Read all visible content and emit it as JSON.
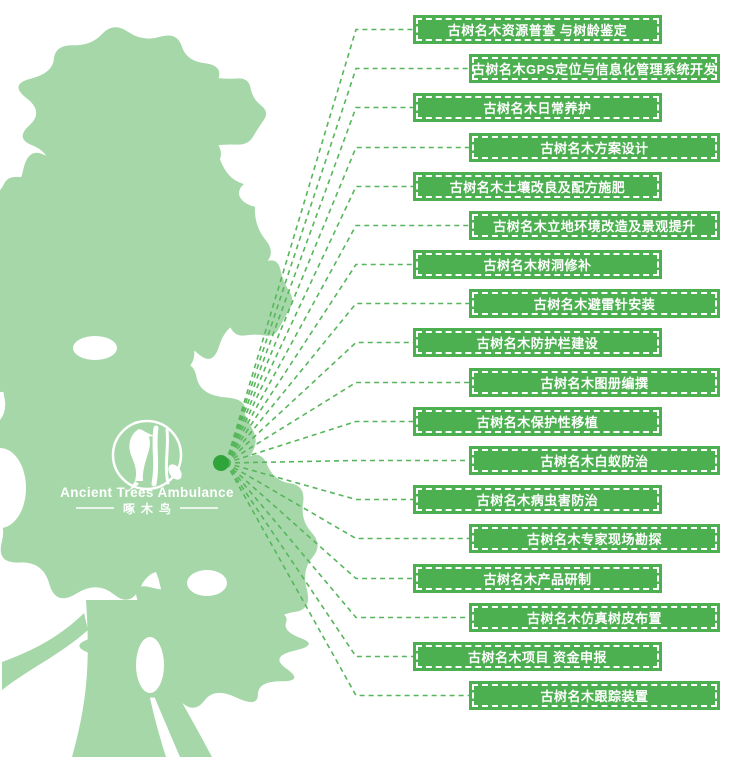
{
  "page": {
    "background": "#ffffff",
    "description": "Ancient trees protection services infographic: tree silhouette with hub dot linked by dashed lines to 18 service labels"
  },
  "logo": {
    "title_en": "Ancient Trees Ambulance",
    "title_zh": "啄木鸟",
    "icon": "woodpecker-on-trunk-in-circle",
    "text_color": "#ffffff"
  },
  "colors": {
    "tree": "#a6d7a9",
    "box_green": "#4cb050",
    "connector_green": "#57b65b",
    "hub_dot": "#2ea43a",
    "box_text": "#ffffff",
    "logo_white": "#ffffff"
  },
  "services": [
    {
      "label": "古树名木资源普查 与树龄鉴定"
    },
    {
      "label": "古树名木GPS定位与信息化管理系统开发"
    },
    {
      "label": "古树名木日常养护"
    },
    {
      "label": "古树名木方案设计"
    },
    {
      "label": "古树名木土壤改良及配方施肥"
    },
    {
      "label": "古树名木立地环境改造及景观提升"
    },
    {
      "label": "古树名木树洞修补"
    },
    {
      "label": "古树名木避雷针安装"
    },
    {
      "label": "古树名木防护栏建设"
    },
    {
      "label": "古树名木图册编撰"
    },
    {
      "label": "古树名木保护性移植"
    },
    {
      "label": "古树名木白蚁防治"
    },
    {
      "label": "古树名木病虫害防治"
    },
    {
      "label": "古树名木专家现场勘探"
    },
    {
      "label": "古树名木产品研制"
    },
    {
      "label": "古树名木仿真树皮布置"
    },
    {
      "label": "古树名木项目 资金申报"
    },
    {
      "label": "古树名木跟踪装置"
    }
  ]
}
